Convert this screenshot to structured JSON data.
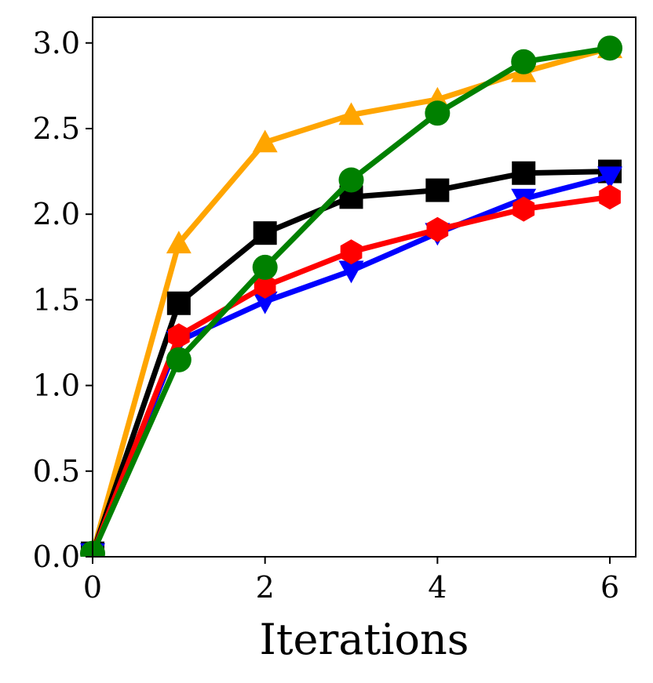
{
  "chart_data": {
    "type": "line",
    "title": "",
    "xlabel": "Iterations",
    "ylabel": "",
    "xlim": [
      0,
      6.3
    ],
    "ylim": [
      0,
      3.15
    ],
    "xticks": [
      0,
      2,
      4,
      6
    ],
    "xtick_labels": [
      "0",
      "2",
      "4",
      "6"
    ],
    "yticks": [
      0,
      0.5,
      1.0,
      1.5,
      2.0,
      2.5,
      3.0
    ],
    "ytick_labels": [
      "0.0",
      "0.5",
      "1.0",
      "1.5",
      "2.0",
      "2.5",
      "3.0"
    ],
    "grid": false,
    "legend": "none",
    "x": [
      0,
      1,
      2,
      3,
      4,
      5,
      6
    ],
    "series": [
      {
        "name": "orange-triangle-up",
        "color": "#FFA500",
        "marker": "triangle-up",
        "values": [
          0.02,
          1.83,
          2.42,
          2.58,
          2.67,
          2.83,
          2.97
        ]
      },
      {
        "name": "black-square",
        "color": "#000000",
        "marker": "square",
        "values": [
          0.02,
          1.48,
          1.89,
          2.1,
          2.14,
          2.24,
          2.25
        ]
      },
      {
        "name": "blue-triangle-down",
        "color": "#0000FF",
        "marker": "triangle-down",
        "values": [
          0.02,
          1.26,
          1.49,
          1.67,
          1.89,
          2.09,
          2.22
        ]
      },
      {
        "name": "red-hexagon",
        "color": "#FF0000",
        "marker": "hexagon",
        "values": [
          0.02,
          1.29,
          1.58,
          1.78,
          1.91,
          2.03,
          2.1
        ]
      },
      {
        "name": "green-circle",
        "color": "#008000",
        "marker": "circle",
        "values": [
          0.02,
          1.15,
          1.69,
          2.2,
          2.59,
          2.89,
          2.97
        ]
      }
    ]
  }
}
